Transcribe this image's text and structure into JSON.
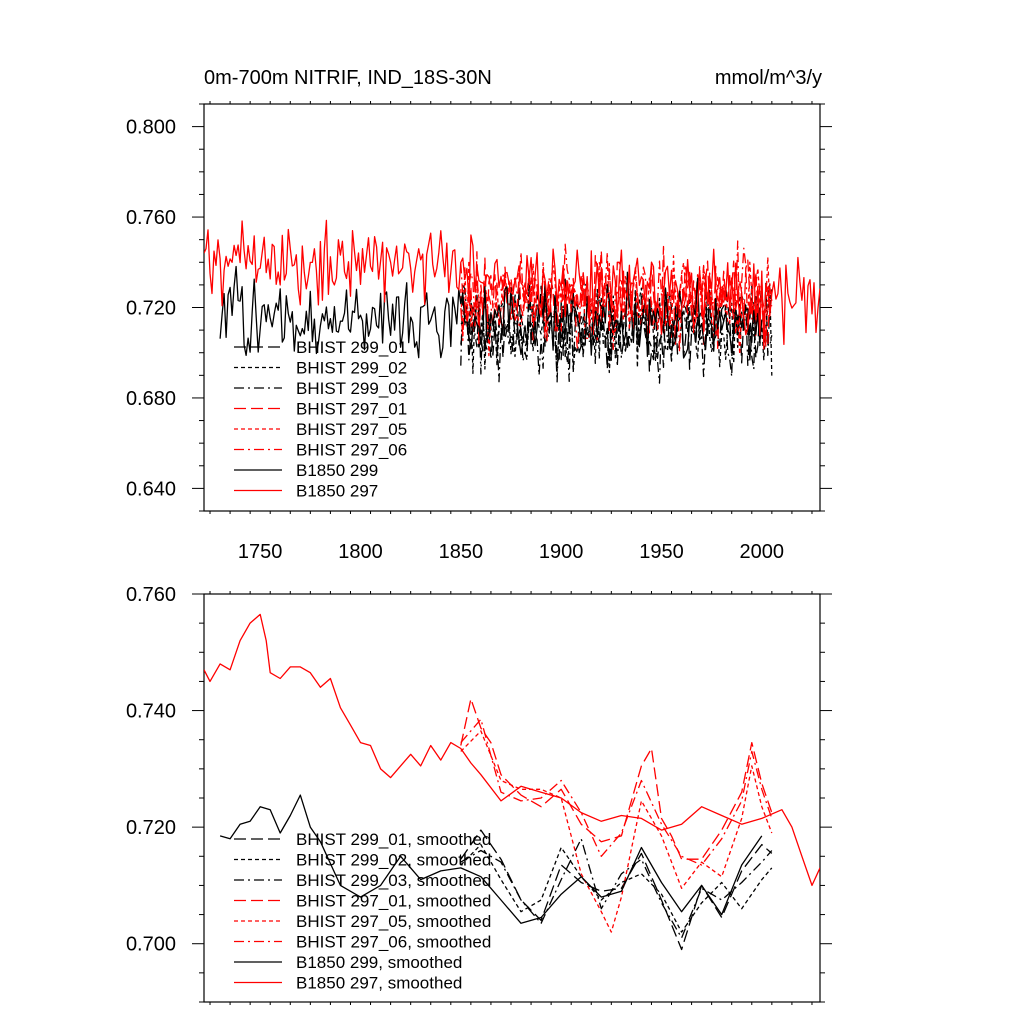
{
  "chart_data": [
    {
      "type": "line",
      "title_left": "0m-700m NITRIF, IND_18S-30N",
      "title_right": "mmol/m^3/y",
      "xlim": [
        1722,
        2029
      ],
      "ylim": [
        0.63,
        0.81
      ],
      "x_ticks": [
        1750,
        1800,
        1850,
        1900,
        1950,
        2000
      ],
      "x_tick_labels": [
        "1750",
        "1800",
        "1850",
        "1900",
        "1950",
        "2000"
      ],
      "y_ticks": [
        0.64,
        0.68,
        0.72,
        0.76,
        0.8
      ],
      "y_tick_labels": [
        "0.640",
        "0.680",
        "0.720",
        "0.760",
        "0.800"
      ],
      "series": [
        {
          "name": "BHIST 299_01",
          "color": "#000000",
          "dash": "12,5",
          "x_start": 1850,
          "x_end": 2005,
          "base": 0.712,
          "amp": 0.028,
          "trend": 0.0,
          "seed": 11
        },
        {
          "name": "BHIST 299_02",
          "color": "#000000",
          "dash": "4,3",
          "x_start": 1850,
          "x_end": 2005,
          "base": 0.711,
          "amp": 0.028,
          "trend": 0.0,
          "seed": 12
        },
        {
          "name": "BHIST 299_03",
          "color": "#000000",
          "dash": "10,4,2,4",
          "x_start": 1850,
          "x_end": 2005,
          "base": 0.71,
          "amp": 0.028,
          "trend": 0.0,
          "seed": 13
        },
        {
          "name": "BHIST 297_01",
          "color": "#ff0000",
          "dash": "12,5",
          "x_start": 1850,
          "x_end": 2005,
          "base": 0.725,
          "amp": 0.028,
          "trend": 0.0,
          "seed": 14
        },
        {
          "name": "BHIST 297_05",
          "color": "#ff0000",
          "dash": "4,3",
          "x_start": 1850,
          "x_end": 2005,
          "base": 0.723,
          "amp": 0.028,
          "trend": 0.0,
          "seed": 15
        },
        {
          "name": "BHIST 297_06",
          "color": "#ff0000",
          "dash": "10,4,2,4",
          "x_start": 1850,
          "x_end": 2005,
          "base": 0.724,
          "amp": 0.028,
          "trend": 0.0,
          "seed": 16
        },
        {
          "name": "B1850 299",
          "color": "#000000",
          "dash": "",
          "x_start": 1730,
          "x_end": 2000,
          "base": 0.716,
          "amp": 0.024,
          "trend": -0.003,
          "seed": 17
        },
        {
          "name": "B1850 297",
          "color": "#ff0000",
          "dash": "",
          "x_start": 1722,
          "x_end": 2029,
          "base": 0.745,
          "amp": 0.026,
          "trend": -0.022,
          "seed": 18
        }
      ]
    },
    {
      "type": "line",
      "xlim": [
        1722,
        2029
      ],
      "ylim": [
        0.69,
        0.76
      ],
      "x_ticks": [
        1750,
        1800,
        1850,
        1900,
        1950,
        2000
      ],
      "y_ticks": [
        0.7,
        0.72,
        0.74,
        0.76
      ],
      "y_tick_labels": [
        "0.700",
        "0.720",
        "0.740",
        "0.760"
      ],
      "series": [
        {
          "name": "BHIST 299_01, smoothed",
          "color": "#000000",
          "dash": "12,5",
          "points": [
            [
              1850,
              0.7145
            ],
            [
              1860,
              0.7195
            ],
            [
              1870,
              0.7145
            ],
            [
              1880,
              0.7075
            ],
            [
              1890,
              0.704
            ],
            [
              1900,
              0.7135
            ],
            [
              1910,
              0.7105
            ],
            [
              1920,
              0.709
            ],
            [
              1930,
              0.7095
            ],
            [
              1940,
              0.7155
            ],
            [
              1950,
              0.7075
            ],
            [
              1960,
              0.699
            ],
            [
              1970,
              0.71
            ],
            [
              1980,
              0.7045
            ],
            [
              1990,
              0.7125
            ],
            [
              2000,
              0.717
            ],
            [
              2005,
              0.7155
            ]
          ]
        },
        {
          "name": "BHIST 299_02, smoothed",
          "color": "#000000",
          "dash": "4,3",
          "points": [
            [
              1850,
              0.7135
            ],
            [
              1860,
              0.717
            ],
            [
              1870,
              0.711
            ],
            [
              1880,
              0.7055
            ],
            [
              1890,
              0.7075
            ],
            [
              1900,
              0.7165
            ],
            [
              1910,
              0.7115
            ],
            [
              1920,
              0.7075
            ],
            [
              1930,
              0.7105
            ],
            [
              1940,
              0.712
            ],
            [
              1950,
              0.7085
            ],
            [
              1960,
              0.702
            ],
            [
              1970,
              0.707
            ],
            [
              1980,
              0.7105
            ],
            [
              1990,
              0.706
            ],
            [
              2000,
              0.711
            ],
            [
              2005,
              0.713
            ]
          ]
        },
        {
          "name": "BHIST 299_03, smoothed",
          "color": "#000000",
          "dash": "10,4,2,4",
          "points": [
            [
              1850,
              0.714
            ],
            [
              1860,
              0.716
            ],
            [
              1870,
              0.714
            ],
            [
              1880,
              0.7075
            ],
            [
              1890,
              0.7035
            ],
            [
              1900,
              0.711
            ],
            [
              1910,
              0.718
            ],
            [
              1920,
              0.706
            ],
            [
              1930,
              0.712
            ],
            [
              1940,
              0.7145
            ],
            [
              1950,
              0.707
            ],
            [
              1960,
              0.701
            ],
            [
              1970,
              0.7095
            ],
            [
              1980,
              0.7075
            ],
            [
              1990,
              0.7105
            ],
            [
              2000,
              0.714
            ],
            [
              2005,
              0.716
            ]
          ]
        },
        {
          "name": "BHIST 297_01, smoothed",
          "color": "#ff0000",
          "dash": "12,5",
          "points": [
            [
              1850,
              0.734
            ],
            [
              1855,
              0.742
            ],
            [
              1860,
              0.737
            ],
            [
              1865,
              0.7345
            ],
            [
              1870,
              0.729
            ],
            [
              1880,
              0.7255
            ],
            [
              1890,
              0.7235
            ],
            [
              1900,
              0.7265
            ],
            [
              1910,
              0.7205
            ],
            [
              1920,
              0.7175
            ],
            [
              1930,
              0.7185
            ],
            [
              1940,
              0.7305
            ],
            [
              1945,
              0.7335
            ],
            [
              1950,
              0.7215
            ],
            [
              1955,
              0.7185
            ],
            [
              1960,
              0.7145
            ],
            [
              1970,
              0.7145
            ],
            [
              1980,
              0.7195
            ],
            [
              1990,
              0.726
            ],
            [
              1995,
              0.7345
            ],
            [
              2000,
              0.7275
            ],
            [
              2005,
              0.7225
            ]
          ]
        },
        {
          "name": "BHIST 297_05, smoothed",
          "color": "#ff0000",
          "dash": "4,3",
          "points": [
            [
              1850,
              0.733
            ],
            [
              1860,
              0.7365
            ],
            [
              1870,
              0.728
            ],
            [
              1880,
              0.7265
            ],
            [
              1890,
              0.7265
            ],
            [
              1900,
              0.725
            ],
            [
              1910,
              0.712
            ],
            [
              1920,
              0.7055
            ],
            [
              1925,
              0.702
            ],
            [
              1930,
              0.708
            ],
            [
              1940,
              0.7245
            ],
            [
              1950,
              0.7185
            ],
            [
              1960,
              0.7095
            ],
            [
              1970,
              0.714
            ],
            [
              1980,
              0.7115
            ],
            [
              1990,
              0.7215
            ],
            [
              1995,
              0.7305
            ],
            [
              2000,
              0.7235
            ],
            [
              2005,
              0.719
            ]
          ]
        },
        {
          "name": "BHIST 297_06, smoothed",
          "color": "#ff0000",
          "dash": "10,4,2,4",
          "points": [
            [
              1850,
              0.7345
            ],
            [
              1860,
              0.7385
            ],
            [
              1870,
              0.726
            ],
            [
              1880,
              0.7245
            ],
            [
              1890,
              0.725
            ],
            [
              1900,
              0.728
            ],
            [
              1910,
              0.7225
            ],
            [
              1920,
              0.715
            ],
            [
              1930,
              0.719
            ],
            [
              1940,
              0.728
            ],
            [
              1950,
              0.7205
            ],
            [
              1960,
              0.715
            ],
            [
              1970,
              0.7135
            ],
            [
              1980,
              0.718
            ],
            [
              1990,
              0.7245
            ],
            [
              1995,
              0.733
            ],
            [
              2000,
              0.7265
            ],
            [
              2005,
              0.7215
            ]
          ]
        },
        {
          "name": "B1850 299, smoothed",
          "color": "#000000",
          "dash": "",
          "points": [
            [
              1730,
              0.7185
            ],
            [
              1735,
              0.718
            ],
            [
              1740,
              0.7205
            ],
            [
              1745,
              0.721
            ],
            [
              1750,
              0.7235
            ],
            [
              1755,
              0.723
            ],
            [
              1760,
              0.719
            ],
            [
              1765,
              0.722
            ],
            [
              1770,
              0.7255
            ],
            [
              1775,
              0.72
            ],
            [
              1780,
              0.7175
            ],
            [
              1790,
              0.71
            ],
            [
              1800,
              0.708
            ],
            [
              1810,
              0.71
            ],
            [
              1820,
              0.715
            ],
            [
              1830,
              0.711
            ],
            [
              1840,
              0.7125
            ],
            [
              1850,
              0.713
            ],
            [
              1860,
              0.7115
            ],
            [
              1870,
              0.7075
            ],
            [
              1880,
              0.7035
            ],
            [
              1890,
              0.7045
            ],
            [
              1900,
              0.7085
            ],
            [
              1910,
              0.7115
            ],
            [
              1920,
              0.708
            ],
            [
              1930,
              0.709
            ],
            [
              1940,
              0.7165
            ],
            [
              1950,
              0.7105
            ],
            [
              1960,
              0.7055
            ],
            [
              1970,
              0.71
            ],
            [
              1980,
              0.705
            ],
            [
              1990,
              0.7135
            ],
            [
              2000,
              0.7185
            ]
          ]
        },
        {
          "name": "B1850 297, smoothed",
          "color": "#ff0000",
          "dash": "",
          "points": [
            [
              1722,
              0.747
            ],
            [
              1725,
              0.745
            ],
            [
              1730,
              0.748
            ],
            [
              1735,
              0.747
            ],
            [
              1740,
              0.752
            ],
            [
              1745,
              0.755
            ],
            [
              1750,
              0.7565
            ],
            [
              1753,
              0.752
            ],
            [
              1755,
              0.7465
            ],
            [
              1760,
              0.7455
            ],
            [
              1765,
              0.7475
            ],
            [
              1770,
              0.7475
            ],
            [
              1775,
              0.7465
            ],
            [
              1780,
              0.744
            ],
            [
              1785,
              0.7455
            ],
            [
              1790,
              0.7405
            ],
            [
              1795,
              0.7375
            ],
            [
              1800,
              0.7345
            ],
            [
              1805,
              0.734
            ],
            [
              1810,
              0.73
            ],
            [
              1815,
              0.7285
            ],
            [
              1820,
              0.7305
            ],
            [
              1825,
              0.7325
            ],
            [
              1830,
              0.7305
            ],
            [
              1835,
              0.734
            ],
            [
              1840,
              0.7315
            ],
            [
              1845,
              0.7345
            ],
            [
              1850,
              0.7335
            ],
            [
              1855,
              0.731
            ],
            [
              1860,
              0.729
            ],
            [
              1870,
              0.7245
            ],
            [
              1880,
              0.727
            ],
            [
              1890,
              0.726
            ],
            [
              1900,
              0.725
            ],
            [
              1910,
              0.7225
            ],
            [
              1920,
              0.721
            ],
            [
              1930,
              0.722
            ],
            [
              1940,
              0.7215
            ],
            [
              1950,
              0.7195
            ],
            [
              1960,
              0.7205
            ],
            [
              1970,
              0.7235
            ],
            [
              1980,
              0.722
            ],
            [
              1990,
              0.7205
            ],
            [
              2000,
              0.7215
            ],
            [
              2010,
              0.723
            ],
            [
              2015,
              0.72
            ],
            [
              2020,
              0.715
            ],
            [
              2025,
              0.71
            ],
            [
              2029,
              0.713
            ]
          ]
        }
      ]
    }
  ]
}
